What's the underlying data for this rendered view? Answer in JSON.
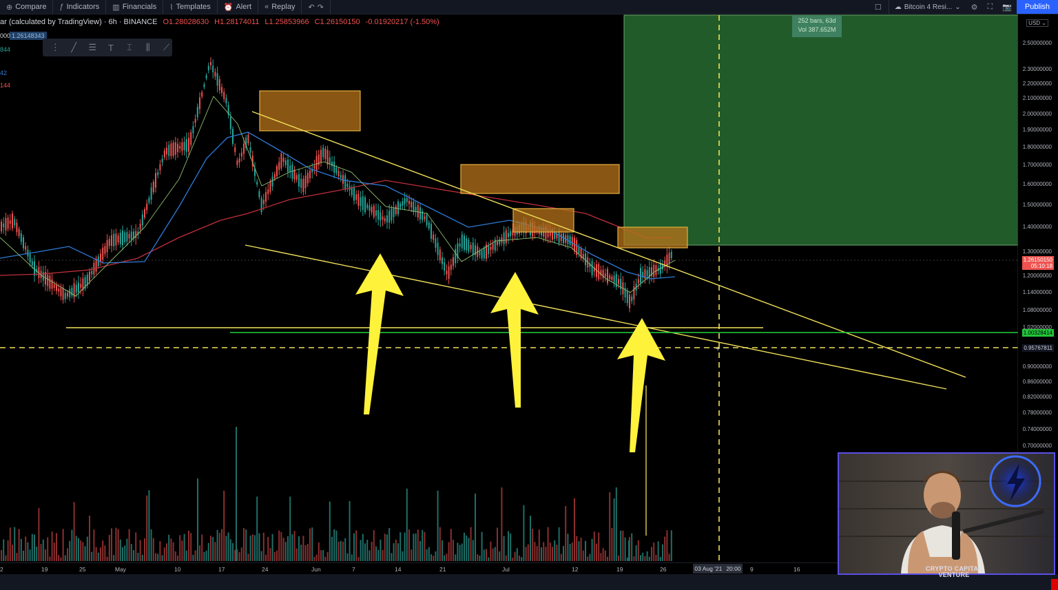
{
  "toolbar": {
    "compare": "Compare",
    "indicators": "Indicators",
    "financials": "Financials",
    "templates": "Templates",
    "alert": "Alert",
    "replay": "Replay",
    "layout_name": "Bitcoin 4 Resi...",
    "publish": "Publish"
  },
  "legend": {
    "symbol": "ar (calculated by TradingView) · 6h · BINANCE",
    "open": "O1.28028630",
    "high": "H1.28174011",
    "low": "L1.25853966",
    "close": "C1.26150150",
    "change": "-0.01920217 (-1.50%)"
  },
  "side_values": {
    "price_box": "1.26148343",
    "v1": "000",
    "v2": "844",
    "v3": "42",
    "v4": "144"
  },
  "range_tooltip": {
    "line1": "252 bars, 63d",
    "line2": "Vol 387.652M"
  },
  "currency": "USD",
  "y_axis": {
    "ticks": [
      "2.50000000",
      "2.30000000",
      "2.20000000",
      "2.10000000",
      "2.00000000",
      "1.90000000",
      "1.80000000",
      "1.70000000",
      "1.60000000",
      "1.50000000",
      "1.40000000",
      "1.30000000",
      "1.20000000",
      "1.14000000",
      "1.08000000",
      "1.02000000",
      "0.90000000",
      "0.86000000",
      "0.82000000",
      "0.78000000",
      "0.74000000",
      "0.70000000"
    ],
    "current_price": "1.26150150",
    "countdown": "05:10:18",
    "green_level": "1.00328414",
    "dashed_level": "0.95767811"
  },
  "x_axis": {
    "ticks": [
      "2",
      "19",
      "25",
      "May",
      "10",
      "17",
      "24",
      "Jun",
      "7",
      "14",
      "21",
      "Jul",
      "12",
      "19",
      "26",
      "9",
      "16"
    ],
    "crosshair_date": "03 Aug '21",
    "crosshair_time": "20:00"
  },
  "webcam": {
    "brand": "CRYPTO CAPITAL VENTURE"
  },
  "colors": {
    "up": "#26a69a",
    "down": "#ef5350",
    "trendline": "#f2e15a",
    "arrow": "#fff23b",
    "zone": "#b8731b",
    "green_box": "#205b29",
    "ema_blue": "#2f7bd8",
    "ema_red": "#c0303a"
  }
}
